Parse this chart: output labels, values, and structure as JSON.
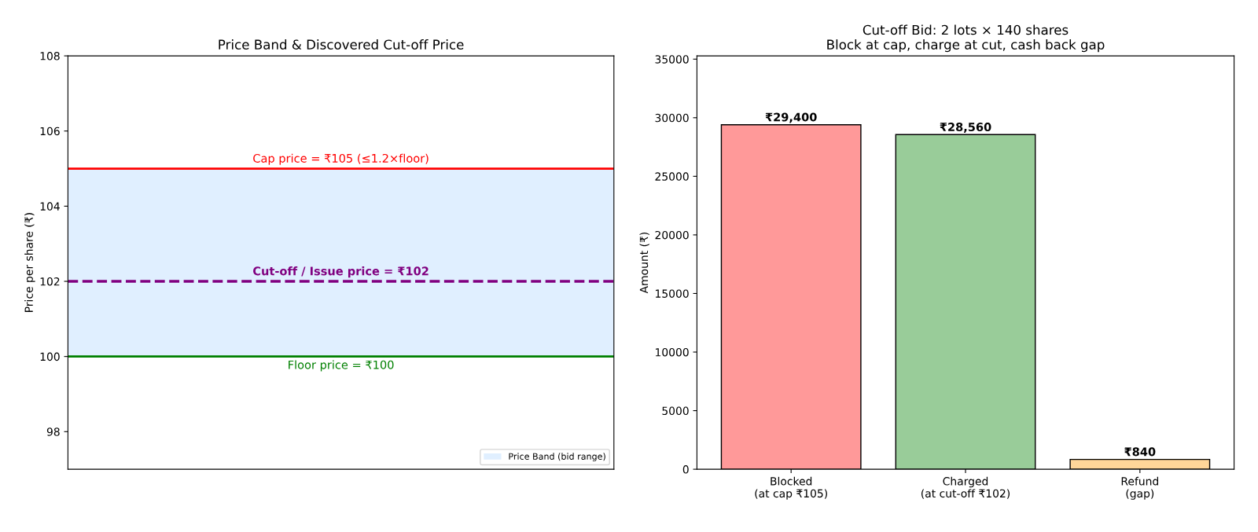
{
  "chart_data": [
    {
      "type": "line",
      "title": "Price Band & Discovered Cut-off Price",
      "ylabel": "Price per share (₹)",
      "categories": [
        null
      ],
      "values": [
        null
      ],
      "ylim": [
        97,
        108
      ],
      "yticks": [
        98,
        100,
        102,
        104,
        106,
        108
      ],
      "tick_labels": "y",
      "legend": "bottom right",
      "grid": false,
      "ref_lines": [
        {
          "axis": "y",
          "value": 105,
          "label": "Cap price = ₹105 (≤1.2×floor)",
          "color": "#ff0000",
          "line_style": "solid"
        },
        {
          "axis": "y",
          "value": 102,
          "label": "Cut-off / Issue price = ₹102",
          "color": "#800080",
          "line_style": "dashed"
        },
        {
          "axis": "y",
          "value": 100,
          "label": "Floor price = ₹100",
          "color": "#008000",
          "line_style": "solid"
        }
      ],
      "bands": [
        {
          "axis": "y",
          "from": 100,
          "to": 105,
          "label": "Price Band (bid range)",
          "color": "#cce5ff"
        }
      ]
    },
    {
      "type": "bar",
      "title": "Cut-off Bid: 2 lots × 140 shares\nBlock at cap, charge at cut, cash back gap",
      "ylabel": "Amount (₹)",
      "categories": [
        "Blocked\n(at cap ₹105)",
        "Charged\n(at cut-off ₹102)",
        "Refund\n(gap)"
      ],
      "values": [
        29400,
        28560,
        840
      ],
      "colors": [
        "#ff9999",
        "#99cc99",
        "#ffd699"
      ],
      "value_labels": [
        "₹29,400",
        "₹28,560",
        "₹840"
      ],
      "ylim": [
        0,
        35280
      ],
      "yticks": [
        0,
        5000,
        10000,
        15000,
        20000,
        25000,
        30000,
        35000
      ],
      "grid": false,
      "legend": false
    }
  ]
}
